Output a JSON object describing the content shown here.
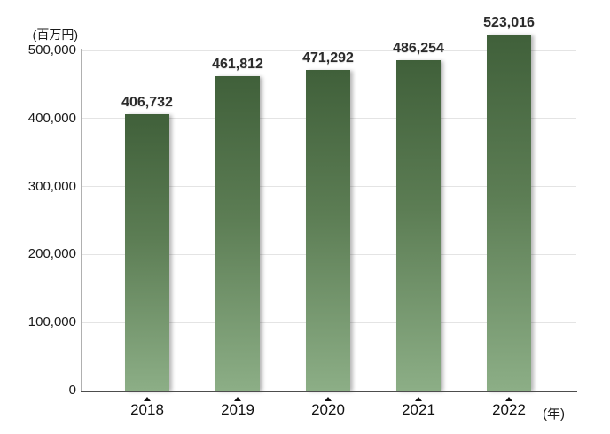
{
  "chart_data": {
    "type": "bar",
    "title": "",
    "ylabel": "(百万円)",
    "xlabel": "(年)",
    "categories": [
      "2018",
      "2019",
      "2020",
      "2021",
      "2022"
    ],
    "values": [
      406732,
      461812,
      471292,
      486254,
      523016
    ],
    "value_labels": [
      "406,732",
      "461,812",
      "471,292",
      "486,254",
      "523,016"
    ],
    "ylim": [
      0,
      500000
    ],
    "yticks": {
      "values": [
        0,
        100000,
        200000,
        300000,
        400000,
        500000
      ],
      "labels": [
        "0",
        "100,000",
        "200,000",
        "300,000",
        "400,000",
        "500,000"
      ]
    },
    "grid": true,
    "legend": false,
    "marker_icon": "triangle-up-marker",
    "colors": {
      "bar_gradient_top": "#40603a",
      "bar_gradient_bottom": "#8cae86",
      "gridline": "#e4e4e4",
      "y_axis": "#b0b0b0",
      "x_axis": "#4d4d4d",
      "tick_text": "#1a1a1a",
      "value_text": "#2b2b2b"
    }
  }
}
